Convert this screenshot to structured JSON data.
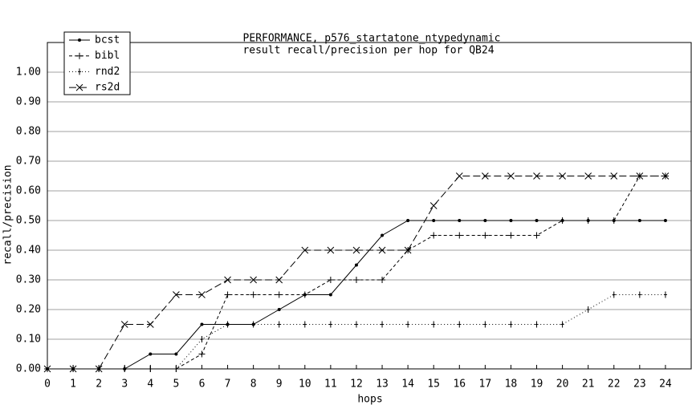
{
  "chart_data": {
    "type": "line",
    "title": "PERFORMANCE, p576_startatone_ntypedynamic",
    "subtitle": "result recall/precision per hop for QB24",
    "x_label": "hops",
    "y_label": "recall/precision",
    "x": [
      0,
      1,
      2,
      3,
      4,
      5,
      6,
      7,
      8,
      9,
      10,
      11,
      12,
      13,
      14,
      15,
      16,
      17,
      18,
      19,
      20,
      21,
      22,
      23,
      24
    ],
    "xlim": [
      0,
      25
    ],
    "xticks": [
      0,
      1,
      2,
      3,
      4,
      5,
      6,
      7,
      8,
      9,
      10,
      11,
      12,
      13,
      14,
      15,
      16,
      17,
      18,
      19,
      20,
      21,
      22,
      23,
      24
    ],
    "ylim": [
      0,
      1.1
    ],
    "yticks": [
      {
        "value": 0,
        "label": "0.00"
      },
      {
        "value": 0.1,
        "label": "0.10"
      },
      {
        "value": 0.2,
        "label": "0.20"
      },
      {
        "value": 0.3,
        "label": "0.30"
      },
      {
        "value": 0.4,
        "label": "0.40"
      },
      {
        "value": 0.5,
        "label": "0.50"
      },
      {
        "value": 0.6,
        "label": "0.60"
      },
      {
        "value": 0.7,
        "label": "0.70"
      },
      {
        "value": 0.8,
        "label": "0.80"
      },
      {
        "value": 0.9,
        "label": "0.90"
      },
      {
        "value": 1.0,
        "label": "1.00"
      }
    ],
    "grid": true,
    "legend": "top-left",
    "series": [
      {
        "name": "bcst",
        "color": "#000000",
        "line_style": "solid",
        "marker": "dot",
        "values": [
          0,
          0,
          0,
          0,
          0.05,
          0.05,
          0.15,
          0.15,
          0.15,
          0.2,
          0.25,
          0.25,
          0.35,
          0.45,
          0.5,
          0.5,
          0.5,
          0.5,
          0.5,
          0.5,
          0.5,
          0.5,
          0.5,
          0.5,
          0.5
        ]
      },
      {
        "name": "bibl",
        "color": "#000000",
        "line_style": "dashed",
        "marker": "plus",
        "values": [
          0,
          0,
          0,
          0,
          0,
          0,
          0.05,
          0.25,
          0.25,
          0.25,
          0.25,
          0.3,
          0.3,
          0.3,
          0.4,
          0.45,
          0.45,
          0.45,
          0.45,
          0.45,
          0.5,
          0.5,
          0.5,
          0.65,
          0.65
        ]
      },
      {
        "name": "rnd2",
        "color": "#000000",
        "line_style": "dotted",
        "marker": "tick",
        "values": [
          0,
          0,
          0,
          0,
          0,
          0,
          0.1,
          0.15,
          0.15,
          0.15,
          0.15,
          0.15,
          0.15,
          0.15,
          0.15,
          0.15,
          0.15,
          0.15,
          0.15,
          0.15,
          0.15,
          0.2,
          0.25,
          0.25,
          0.25
        ]
      },
      {
        "name": "rs2d",
        "color": "#000000",
        "line_style": "long-dashed",
        "marker": "cross",
        "values": [
          0,
          0,
          0,
          0.15,
          0.15,
          0.25,
          0.25,
          0.3,
          0.3,
          0.3,
          0.4,
          0.4,
          0.4,
          0.4,
          0.4,
          0.55,
          0.65,
          0.65,
          0.65,
          0.65,
          0.65,
          0.65,
          0.65,
          0.65,
          0.65
        ]
      }
    ]
  }
}
